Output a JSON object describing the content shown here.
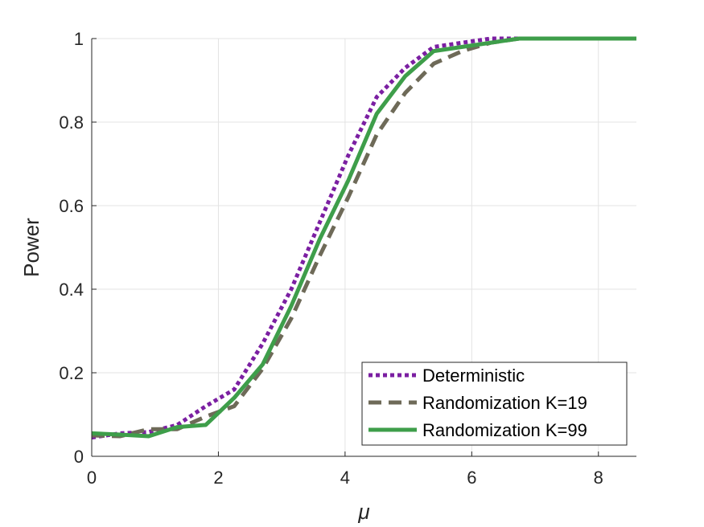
{
  "chart_data": {
    "type": "line",
    "title": "",
    "xlabel": "μ",
    "ylabel": "Power",
    "xlim": [
      0,
      8.6
    ],
    "ylim": [
      0,
      1
    ],
    "grid": true,
    "xticks": [
      0,
      2,
      4,
      6,
      8
    ],
    "yticks": [
      0,
      0.2,
      0.4,
      0.6,
      0.8,
      1
    ],
    "ytick_labels": [
      "0",
      "0.2",
      "0.4",
      "0.6",
      "0.8",
      "1"
    ],
    "legend_position": "bottom-right",
    "series": [
      {
        "name": "Deterministic",
        "style": "dotted",
        "color": "#7B1FA2",
        "x": [
          0,
          0.45,
          0.9,
          1.35,
          1.8,
          2.25,
          2.7,
          3.15,
          3.6,
          4.05,
          4.5,
          4.95,
          5.4,
          5.85,
          6.3,
          6.75,
          7.2,
          7.65,
          8.1,
          8.6
        ],
        "y": [
          0.045,
          0.055,
          0.058,
          0.075,
          0.12,
          0.16,
          0.27,
          0.4,
          0.56,
          0.72,
          0.86,
          0.93,
          0.98,
          0.99,
          1.0,
          1.0,
          1.0,
          1.0,
          1.0,
          1.0
        ]
      },
      {
        "name": "Randomization K=19",
        "style": "dashed",
        "color": "#6E6A58",
        "x": [
          0,
          0.45,
          0.9,
          1.35,
          1.8,
          2.25,
          2.7,
          3.15,
          3.6,
          4.05,
          4.5,
          4.95,
          5.4,
          5.85,
          6.3,
          6.75,
          7.2,
          7.65,
          8.1,
          8.6
        ],
        "y": [
          0.05,
          0.048,
          0.065,
          0.065,
          0.095,
          0.12,
          0.21,
          0.33,
          0.48,
          0.62,
          0.77,
          0.87,
          0.94,
          0.97,
          0.99,
          1.0,
          1.0,
          1.0,
          1.0,
          1.0
        ]
      },
      {
        "name": "Randomization K=99",
        "style": "solid",
        "color": "#3E9E4A",
        "x": [
          0,
          0.45,
          0.9,
          1.35,
          1.8,
          2.25,
          2.7,
          3.15,
          3.6,
          4.05,
          4.5,
          4.95,
          5.4,
          5.85,
          6.3,
          6.75,
          7.2,
          7.65,
          8.1,
          8.6
        ],
        "y": [
          0.055,
          0.052,
          0.048,
          0.07,
          0.075,
          0.14,
          0.22,
          0.36,
          0.52,
          0.66,
          0.82,
          0.91,
          0.97,
          0.98,
          0.99,
          1.0,
          1.0,
          1.0,
          1.0,
          1.0
        ]
      }
    ]
  }
}
